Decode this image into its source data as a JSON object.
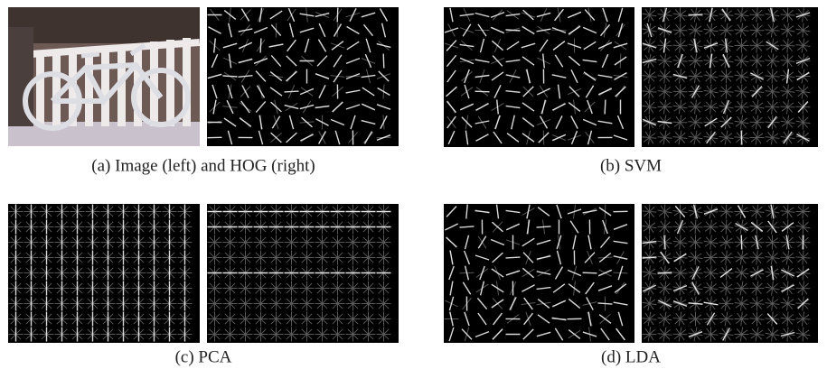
{
  "figure": {
    "subfigures": [
      {
        "caption": "(a) Image (left) and HOG (right)"
      },
      {
        "caption": "(b) SVM"
      },
      {
        "caption": "(c) PCA"
      },
      {
        "caption": "(d) LDA"
      }
    ]
  }
}
